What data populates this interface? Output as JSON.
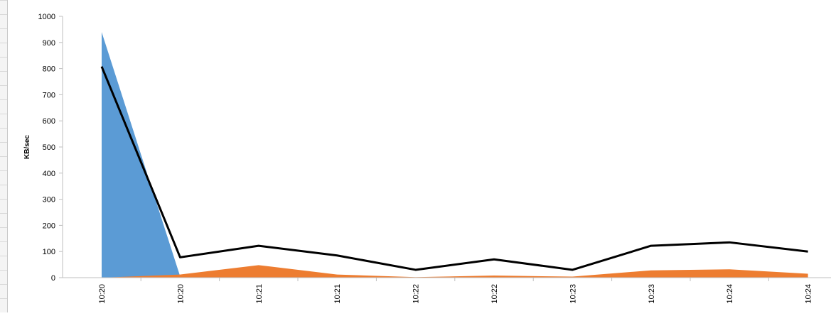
{
  "window": {
    "sheet_grid": "spreadsheet-row-gridlines"
  },
  "chart_data": {
    "type": "area",
    "title": "",
    "xlabel": "",
    "ylabel": "KB/sec",
    "ylim": [
      0,
      1000
    ],
    "yticks": [
      0,
      100,
      200,
      300,
      400,
      500,
      600,
      700,
      800,
      900,
      1000
    ],
    "categories": [
      "10:20",
      "10:20",
      "10:21",
      "10:21",
      "10:22",
      "10:22",
      "10:23",
      "10:23",
      "10:24",
      "10:24"
    ],
    "legend_position": "top",
    "grid": false,
    "series": [
      {
        "kind": "area",
        "color": "#5b9bd5",
        "values": [
          940,
          5,
          0,
          0,
          0,
          0,
          0,
          0,
          0,
          0
        ]
      },
      {
        "kind": "area",
        "color": "#ed7d31",
        "values": [
          0,
          12,
          48,
          12,
          2,
          8,
          4,
          28,
          32,
          15
        ]
      },
      {
        "kind": "line",
        "color": "#000000",
        "values": [
          808,
          78,
          122,
          85,
          30,
          70,
          30,
          122,
          135,
          100
        ]
      }
    ]
  }
}
